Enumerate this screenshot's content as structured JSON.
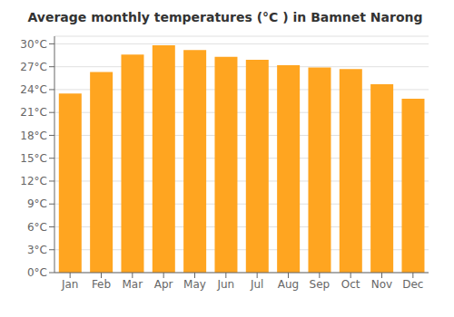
{
  "chart_data": {
    "type": "bar",
    "title": "Average monthly temperatures (°C ) in Bamnet Narong",
    "categories": [
      "Jan",
      "Feb",
      "Mar",
      "Apr",
      "May",
      "Jun",
      "Jul",
      "Aug",
      "Sep",
      "Oct",
      "Nov",
      "Dec"
    ],
    "values": [
      23.5,
      26.3,
      28.6,
      29.8,
      29.2,
      28.3,
      27.9,
      27.2,
      26.9,
      26.7,
      24.7,
      22.8
    ],
    "color": "#FFA520",
    "ylim": [
      0,
      31
    ],
    "yticks": [
      {
        "value": 0,
        "label": "0°C"
      },
      {
        "value": 3,
        "label": "3°C"
      },
      {
        "value": 6,
        "label": "6°C"
      },
      {
        "value": 9,
        "label": "9°C"
      },
      {
        "value": 12,
        "label": "12°C"
      },
      {
        "value": 15,
        "label": "15°C"
      },
      {
        "value": 18,
        "label": "18°C"
      },
      {
        "value": 21,
        "label": "21°C"
      },
      {
        "value": 24,
        "label": "24°C"
      },
      {
        "value": 27,
        "label": "27°C"
      },
      {
        "value": 30,
        "label": "30°C"
      }
    ],
    "grid": true
  }
}
